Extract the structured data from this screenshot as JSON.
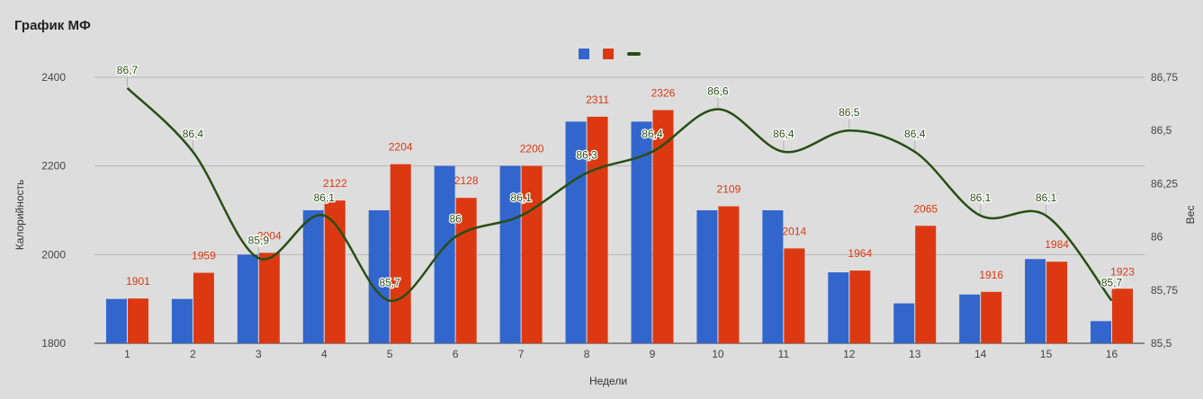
{
  "chart_data": {
    "type": "bar",
    "title": "График МФ",
    "xlabel": "Недели",
    "ylabel_left": "Калорийность",
    "ylabel_right": "Вес",
    "categories": [
      "1",
      "2",
      "3",
      "4",
      "5",
      "6",
      "7",
      "8",
      "9",
      "10",
      "11",
      "12",
      "13",
      "14",
      "15",
      "16"
    ],
    "series": [
      {
        "kind": "bar",
        "axis": "left",
        "color": "#3366cc",
        "values": [
          1900,
          1900,
          2000,
          2100,
          2100,
          2200,
          2200,
          2300,
          2300,
          2100,
          2100,
          1960,
          1890,
          1910,
          1990,
          1850
        ],
        "show_labels": false
      },
      {
        "kind": "bar",
        "axis": "left",
        "color": "#dc3912",
        "values": [
          1901,
          1959,
          2004,
          2122,
          2204,
          2128,
          2200,
          2311,
          2326,
          2109,
          2014,
          1964,
          2065,
          1916,
          1984,
          1923
        ],
        "show_labels": true
      },
      {
        "kind": "line",
        "axis": "right",
        "color": "#274e13",
        "values": [
          86.7,
          86.4,
          85.9,
          86.1,
          85.7,
          86,
          86.1,
          86.3,
          86.4,
          86.6,
          86.4,
          86.5,
          86.4,
          86.1,
          86.1,
          85.7
        ],
        "labels": [
          "86,7",
          "86,4",
          "85,9",
          "86,1",
          "85,7",
          "86",
          "86,1",
          "86,3",
          "86,4",
          "86,6",
          "86,4",
          "86,5",
          "86,4",
          "86,1",
          "86,1",
          "85,7"
        ],
        "show_labels": true
      }
    ],
    "y_left": {
      "min": 1800,
      "max": 2400,
      "ticks": [
        1800,
        2000,
        2200,
        2400
      ],
      "tick_labels": [
        "1800",
        "2000",
        "2200",
        "2400"
      ]
    },
    "y_right": {
      "min": 85.5,
      "max": 86.75,
      "ticks": [
        85.5,
        85.75,
        86,
        86.25,
        86.5,
        86.75
      ],
      "tick_labels": [
        "85,5",
        "85,75",
        "86",
        "86,25",
        "86,5",
        "86,75"
      ]
    },
    "grid": true,
    "legend_position": "top"
  }
}
